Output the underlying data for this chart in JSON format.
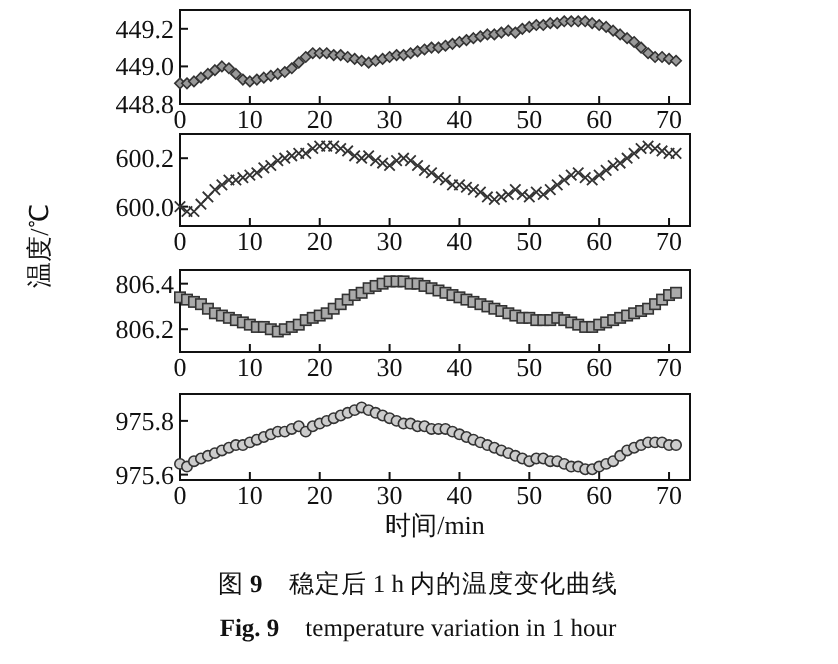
{
  "chart_data": [
    {
      "type": "scatter",
      "marker": "diamond",
      "color": "#333333",
      "x": [
        0,
        1,
        2,
        3,
        4,
        5,
        6,
        7,
        8,
        9,
        10,
        11,
        12,
        13,
        14,
        15,
        16,
        17,
        18,
        19,
        20,
        21,
        22,
        23,
        24,
        25,
        26,
        27,
        28,
        29,
        30,
        31,
        32,
        33,
        34,
        35,
        36,
        37,
        38,
        39,
        40,
        41,
        42,
        43,
        44,
        45,
        46,
        47,
        48,
        49,
        50,
        51,
        52,
        53,
        54,
        55,
        56,
        57,
        58,
        59,
        60,
        61,
        62,
        63,
        64,
        65,
        66,
        67,
        68,
        69,
        70,
        71
      ],
      "values": [
        448.91,
        448.91,
        448.92,
        448.94,
        448.96,
        448.98,
        449.0,
        448.99,
        448.96,
        448.93,
        448.92,
        448.93,
        448.94,
        448.95,
        448.96,
        448.97,
        448.99,
        449.02,
        449.05,
        449.07,
        449.07,
        449.07,
        449.06,
        449.06,
        449.05,
        449.04,
        449.03,
        449.02,
        449.03,
        449.04,
        449.05,
        449.06,
        449.06,
        449.07,
        449.08,
        449.09,
        449.1,
        449.1,
        449.11,
        449.12,
        449.13,
        449.14,
        449.15,
        449.16,
        449.17,
        449.17,
        449.18,
        449.19,
        449.18,
        449.2,
        449.21,
        449.22,
        449.22,
        449.23,
        449.23,
        449.24,
        449.24,
        449.24,
        449.24,
        449.23,
        449.22,
        449.21,
        449.19,
        449.17,
        449.15,
        449.13,
        449.1,
        449.07,
        449.05,
        449.05,
        449.04,
        449.03
      ],
      "xlim": [
        0,
        73
      ],
      "xticks": [
        0,
        10,
        20,
        30,
        40,
        50,
        60,
        70
      ],
      "ylim": [
        448.8,
        449.3
      ],
      "yticks": [
        {
          "value": 448.8,
          "label": "448.8"
        },
        {
          "value": 449,
          "label": "449.0"
        },
        {
          "value": 449.2,
          "label": "449.2"
        }
      ]
    },
    {
      "type": "scatter",
      "marker": "cross",
      "color": "#333333",
      "ylabel": "温度/℃",
      "x": [
        0,
        1,
        2,
        3,
        4,
        5,
        6,
        7,
        8,
        9,
        10,
        11,
        12,
        13,
        14,
        15,
        16,
        17,
        18,
        19,
        20,
        21,
        22,
        23,
        24,
        25,
        26,
        27,
        28,
        29,
        30,
        31,
        32,
        33,
        34,
        35,
        36,
        37,
        38,
        39,
        40,
        41,
        42,
        43,
        44,
        45,
        46,
        47,
        48,
        49,
        50,
        51,
        52,
        53,
        54,
        55,
        56,
        57,
        58,
        59,
        60,
        61,
        62,
        63,
        64,
        65,
        66,
        67,
        68,
        69,
        70,
        71
      ],
      "values": [
        600.0,
        599.98,
        599.98,
        600.01,
        600.04,
        600.07,
        600.09,
        600.11,
        600.11,
        600.12,
        600.13,
        600.14,
        600.16,
        600.17,
        600.19,
        600.2,
        600.21,
        600.22,
        600.22,
        600.24,
        600.25,
        600.25,
        600.25,
        600.24,
        600.23,
        600.21,
        600.2,
        600.21,
        600.19,
        600.18,
        600.17,
        600.19,
        600.2,
        600.19,
        600.17,
        600.15,
        600.14,
        600.12,
        600.11,
        600.09,
        600.09,
        600.08,
        600.07,
        600.06,
        600.04,
        600.03,
        600.04,
        600.05,
        600.07,
        600.05,
        600.04,
        600.06,
        600.05,
        600.07,
        600.09,
        600.11,
        600.13,
        600.14,
        600.12,
        600.11,
        600.13,
        600.15,
        600.17,
        600.18,
        600.2,
        600.22,
        600.24,
        600.25,
        600.24,
        600.23,
        600.22,
        600.22
      ],
      "xlim": [
        0,
        73
      ],
      "xticks": [
        0,
        10,
        20,
        30,
        40,
        50,
        60,
        70
      ],
      "ylim": [
        599.92,
        600.3
      ],
      "yticks": [
        {
          "value": 600,
          "label": "600.0"
        },
        {
          "value": 600.2,
          "label": "600.2"
        }
      ]
    },
    {
      "type": "scatter",
      "marker": "square",
      "color": "#333333",
      "x": [
        0,
        1,
        2,
        3,
        4,
        5,
        6,
        7,
        8,
        9,
        10,
        11,
        12,
        13,
        14,
        15,
        16,
        17,
        18,
        19,
        20,
        21,
        22,
        23,
        24,
        25,
        26,
        27,
        28,
        29,
        30,
        31,
        32,
        33,
        34,
        35,
        36,
        37,
        38,
        39,
        40,
        41,
        42,
        43,
        44,
        45,
        46,
        47,
        48,
        49,
        50,
        51,
        52,
        53,
        54,
        55,
        56,
        57,
        58,
        59,
        60,
        61,
        62,
        63,
        64,
        65,
        66,
        67,
        68,
        69,
        70,
        71
      ],
      "values": [
        806.34,
        806.33,
        806.32,
        806.31,
        806.29,
        806.27,
        806.26,
        806.25,
        806.24,
        806.23,
        806.22,
        806.21,
        806.21,
        806.2,
        806.19,
        806.2,
        806.21,
        806.22,
        806.24,
        806.25,
        806.26,
        806.27,
        806.29,
        806.31,
        806.33,
        806.35,
        806.36,
        806.38,
        806.39,
        806.4,
        806.41,
        806.41,
        806.41,
        806.4,
        806.4,
        806.39,
        806.38,
        806.37,
        806.36,
        806.35,
        806.34,
        806.33,
        806.32,
        806.31,
        806.3,
        806.29,
        806.28,
        806.27,
        806.26,
        806.25,
        806.25,
        806.24,
        806.24,
        806.24,
        806.25,
        806.24,
        806.23,
        806.22,
        806.21,
        806.21,
        806.22,
        806.23,
        806.24,
        806.25,
        806.26,
        806.27,
        806.28,
        806.29,
        806.31,
        806.33,
        806.35,
        806.36
      ],
      "xlim": [
        0,
        73
      ],
      "xticks": [
        0,
        10,
        20,
        30,
        40,
        50,
        60,
        70
      ],
      "ylim": [
        806.1,
        806.46
      ],
      "yticks": [
        {
          "value": 806.2,
          "label": "806.2"
        },
        {
          "value": 806.4,
          "label": "806.4"
        }
      ]
    },
    {
      "type": "scatter",
      "marker": "circle",
      "color": "#333333",
      "xlabel": "时间/min",
      "annotations": [
        "图 **9**　稳定后 1 h 内的温度变化曲线",
        "**Fig. 9**　temperature variation in 1 hour"
      ],
      "x": [
        0,
        1,
        2,
        3,
        4,
        5,
        6,
        7,
        8,
        9,
        10,
        11,
        12,
        13,
        14,
        15,
        16,
        17,
        18,
        19,
        20,
        21,
        22,
        23,
        24,
        25,
        26,
        27,
        28,
        29,
        30,
        31,
        32,
        33,
        34,
        35,
        36,
        37,
        38,
        39,
        40,
        41,
        42,
        43,
        44,
        45,
        46,
        47,
        48,
        49,
        50,
        51,
        52,
        53,
        54,
        55,
        56,
        57,
        58,
        59,
        60,
        61,
        62,
        63,
        64,
        65,
        66,
        67,
        68,
        69,
        70,
        71
      ],
      "values": [
        975.64,
        975.63,
        975.65,
        975.66,
        975.67,
        975.68,
        975.69,
        975.7,
        975.71,
        975.71,
        975.72,
        975.73,
        975.74,
        975.75,
        975.76,
        975.76,
        975.77,
        975.78,
        975.76,
        975.78,
        975.79,
        975.8,
        975.81,
        975.82,
        975.83,
        975.84,
        975.85,
        975.84,
        975.83,
        975.82,
        975.81,
        975.8,
        975.79,
        975.79,
        975.78,
        975.78,
        975.77,
        975.77,
        975.77,
        975.76,
        975.75,
        975.74,
        975.73,
        975.72,
        975.71,
        975.7,
        975.69,
        975.68,
        975.67,
        975.66,
        975.65,
        975.66,
        975.66,
        975.65,
        975.65,
        975.64,
        975.63,
        975.63,
        975.62,
        975.62,
        975.63,
        975.64,
        975.65,
        975.67,
        975.69,
        975.7,
        975.71,
        975.72,
        975.72,
        975.72,
        975.71,
        975.71
      ],
      "xlim": [
        0,
        73
      ],
      "xticks": [
        0,
        10,
        20,
        30,
        40,
        50,
        60,
        70
      ],
      "ylim": [
        975.58,
        975.9
      ],
      "yticks": [
        {
          "value": 975.6,
          "label": "975.6"
        },
        {
          "value": 975.8,
          "label": "975.8"
        }
      ]
    }
  ]
}
